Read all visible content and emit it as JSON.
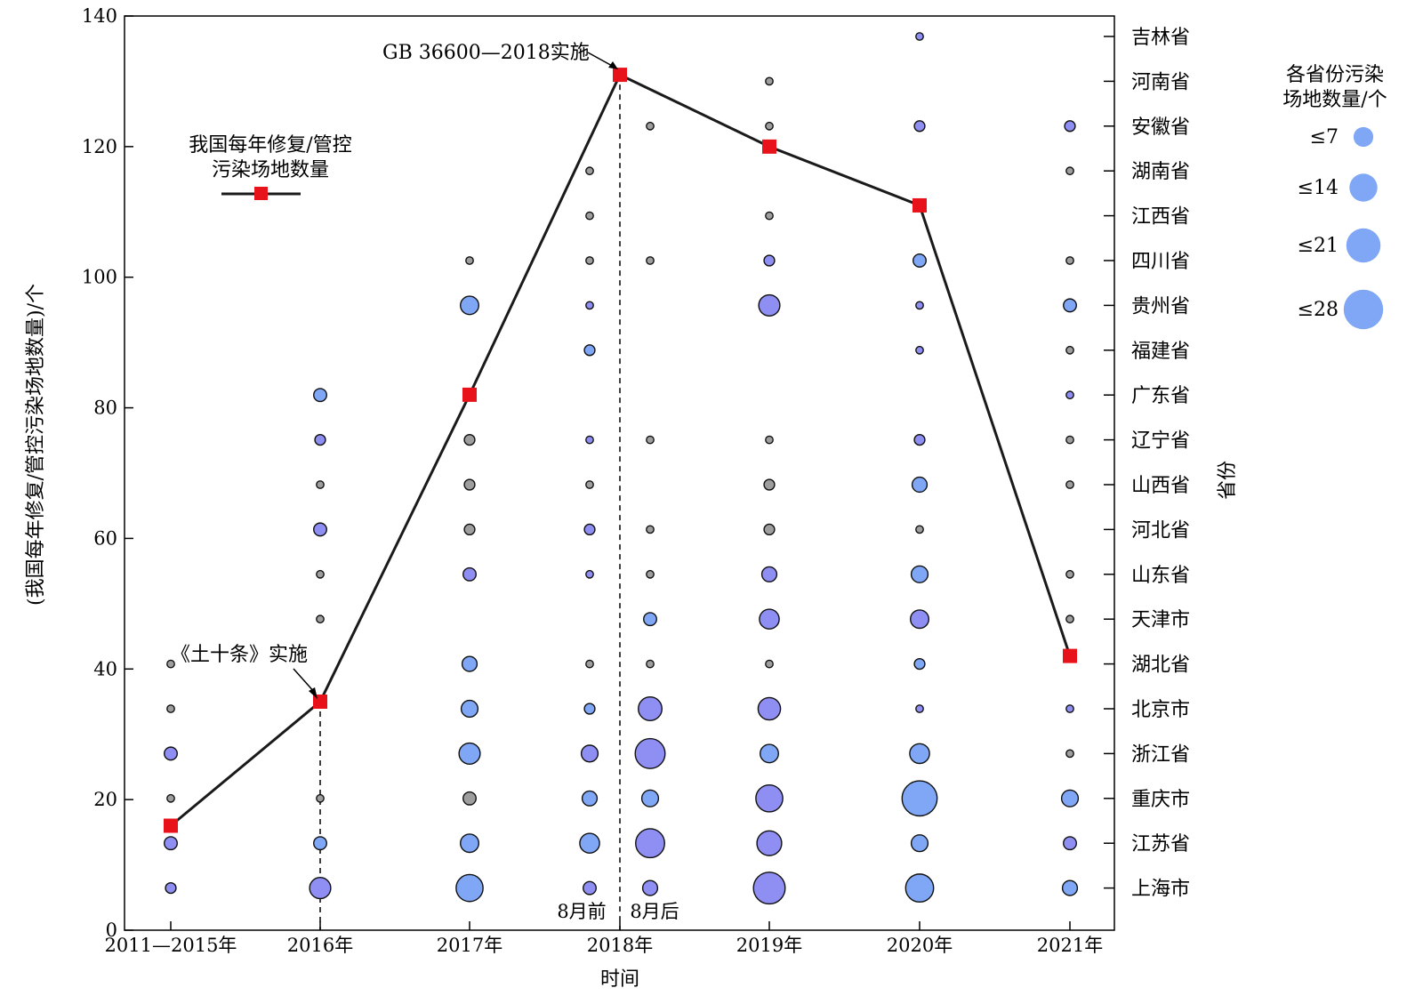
{
  "chart_data": {
    "type": "scatter",
    "x_categories": [
      "2011—2015年",
      "2016年",
      "2017年",
      "2018年",
      "2019年",
      "2020年",
      "2021年"
    ],
    "x_label": "时间",
    "y_left_label": "(我国每年修复/管控污染场地数量)/个",
    "y_left_range": [
      0,
      140
    ],
    "y_left_ticks": [
      0,
      20,
      40,
      60,
      80,
      100,
      120,
      140
    ],
    "y_right_label": "省份",
    "provinces": [
      "吉林省",
      "河南省",
      "安徽省",
      "湖南省",
      "江西省",
      "四川省",
      "贵州省",
      "福建省",
      "广东省",
      "辽宁省",
      "山西省",
      "河北省",
      "山东省",
      "天津市",
      "湖北省",
      "北京市",
      "浙江省",
      "重庆市",
      "江苏省",
      "上海市"
    ],
    "line_series": {
      "name": "我国每年修复/管控污染场地数量",
      "points": [
        {
          "x": "2011—2015年",
          "y": 16
        },
        {
          "x": "2016年",
          "y": 35
        },
        {
          "x": "2017年",
          "y": 82
        },
        {
          "x": "2018年",
          "y": 131
        },
        {
          "x": "2019年",
          "y": 120
        },
        {
          "x": "2020年",
          "y": 111
        },
        {
          "x": "2021年",
          "y": 42
        }
      ]
    },
    "legend_line_text": [
      "我国每年修复/管控",
      "污染场地数量"
    ],
    "size_legend_title": [
      "各省份污染",
      "场地数量/个"
    ],
    "size_legend": [
      {
        "label": "≤7",
        "value": 7
      },
      {
        "label": "≤14",
        "value": 14
      },
      {
        "label": "≤21",
        "value": 21
      },
      {
        "label": "≤28",
        "value": 28
      }
    ],
    "bubble_columns": [
      {
        "x": "2011—2015年",
        "items": [
          {
            "province": "湖北省",
            "value": 1,
            "color": "grey"
          },
          {
            "province": "北京市",
            "value": 1,
            "color": "grey"
          },
          {
            "province": "浙江省",
            "value": 3,
            "color": "purple"
          },
          {
            "province": "重庆市",
            "value": 1,
            "color": "grey"
          },
          {
            "province": "江苏省",
            "value": 3,
            "color": "purple"
          },
          {
            "province": "上海市",
            "value": 2,
            "color": "purple"
          }
        ]
      },
      {
        "x": "2016年",
        "items": [
          {
            "province": "广东省",
            "value": 3,
            "color": "blue"
          },
          {
            "province": "辽宁省",
            "value": 2,
            "color": "purple"
          },
          {
            "province": "山西省",
            "value": 1,
            "color": "grey"
          },
          {
            "province": "河北省",
            "value": 3,
            "color": "purple"
          },
          {
            "province": "山东省",
            "value": 1,
            "color": "grey"
          },
          {
            "province": "天津市",
            "value": 1,
            "color": "grey"
          },
          {
            "province": "重庆市",
            "value": 1,
            "color": "grey"
          },
          {
            "province": "江苏省",
            "value": 3,
            "color": "blue"
          },
          {
            "province": "上海市",
            "value": 8,
            "color": "purple"
          }
        ]
      },
      {
        "x": "2017年",
        "items": [
          {
            "province": "四川省",
            "value": 1,
            "color": "grey"
          },
          {
            "province": "贵州省",
            "value": 6,
            "color": "blue"
          },
          {
            "province": "辽宁省",
            "value": 2,
            "color": "grey"
          },
          {
            "province": "山西省",
            "value": 2,
            "color": "grey"
          },
          {
            "province": "河北省",
            "value": 2,
            "color": "grey"
          },
          {
            "province": "山东省",
            "value": 3,
            "color": "purple"
          },
          {
            "province": "湖北省",
            "value": 4,
            "color": "blue"
          },
          {
            "province": "北京市",
            "value": 5,
            "color": "blue"
          },
          {
            "province": "浙江省",
            "value": 8,
            "color": "blue"
          },
          {
            "province": "重庆市",
            "value": 3,
            "color": "grey"
          },
          {
            "province": "江苏省",
            "value": 6,
            "color": "blue"
          },
          {
            "province": "上海市",
            "value": 13,
            "color": "blue"
          }
        ]
      },
      {
        "x": "2018年（8月前）",
        "items": [
          {
            "province": "湖南省",
            "value": 1,
            "color": "grey"
          },
          {
            "province": "江西省",
            "value": 1,
            "color": "grey"
          },
          {
            "province": "四川省",
            "value": 1,
            "color": "grey"
          },
          {
            "province": "贵州省",
            "value": 1,
            "color": "purple"
          },
          {
            "province": "福建省",
            "value": 2,
            "color": "blue"
          },
          {
            "province": "辽宁省",
            "value": 1,
            "color": "purple"
          },
          {
            "province": "山西省",
            "value": 1,
            "color": "grey"
          },
          {
            "province": "河北省",
            "value": 2,
            "color": "purple"
          },
          {
            "province": "山东省",
            "value": 1,
            "color": "purple"
          },
          {
            "province": "湖北省",
            "value": 1,
            "color": "grey"
          },
          {
            "province": "北京市",
            "value": 2,
            "color": "blue"
          },
          {
            "province": "浙江省",
            "value": 5,
            "color": "purple"
          },
          {
            "province": "重庆市",
            "value": 4,
            "color": "blue"
          },
          {
            "province": "江苏省",
            "value": 7,
            "color": "blue"
          },
          {
            "province": "上海市",
            "value": 3,
            "color": "purple"
          }
        ]
      },
      {
        "x": "2018年（8月后）",
        "items": [
          {
            "province": "安徽省",
            "value": 1,
            "color": "grey"
          },
          {
            "province": "四川省",
            "value": 1,
            "color": "grey"
          },
          {
            "province": "辽宁省",
            "value": 1,
            "color": "grey"
          },
          {
            "province": "河北省",
            "value": 1,
            "color": "grey"
          },
          {
            "province": "山东省",
            "value": 1,
            "color": "grey"
          },
          {
            "province": "天津市",
            "value": 3,
            "color": "blue"
          },
          {
            "province": "湖北省",
            "value": 1,
            "color": "grey"
          },
          {
            "province": "北京市",
            "value": 10,
            "color": "purple"
          },
          {
            "province": "浙江省",
            "value": 16,
            "color": "purple"
          },
          {
            "province": "重庆市",
            "value": 5,
            "color": "blue"
          },
          {
            "province": "江苏省",
            "value": 15,
            "color": "purple"
          },
          {
            "province": "上海市",
            "value": 4,
            "color": "purple"
          }
        ]
      },
      {
        "x": "2019年",
        "items": [
          {
            "province": "河南省",
            "value": 1,
            "color": "grey"
          },
          {
            "province": "安徽省",
            "value": 1,
            "color": "grey"
          },
          {
            "province": "江西省",
            "value": 1,
            "color": "grey"
          },
          {
            "province": "四川省",
            "value": 2,
            "color": "purple"
          },
          {
            "province": "贵州省",
            "value": 8,
            "color": "purple"
          },
          {
            "province": "辽宁省",
            "value": 1,
            "color": "grey"
          },
          {
            "province": "山西省",
            "value": 2,
            "color": "grey"
          },
          {
            "province": "河北省",
            "value": 2,
            "color": "grey"
          },
          {
            "province": "山东省",
            "value": 4,
            "color": "purple"
          },
          {
            "province": "天津市",
            "value": 7,
            "color": "purple"
          },
          {
            "province": "湖北省",
            "value": 1,
            "color": "grey"
          },
          {
            "province": "北京市",
            "value": 9,
            "color": "purple"
          },
          {
            "province": "浙江省",
            "value": 6,
            "color": "blue"
          },
          {
            "province": "重庆市",
            "value": 13,
            "color": "purple"
          },
          {
            "province": "江苏省",
            "value": 11,
            "color": "purple"
          },
          {
            "province": "上海市",
            "value": 18,
            "color": "purple"
          }
        ]
      },
      {
        "x": "2020年",
        "items": [
          {
            "province": "吉林省",
            "value": 1,
            "color": "purple"
          },
          {
            "province": "安徽省",
            "value": 2,
            "color": "purple"
          },
          {
            "province": "四川省",
            "value": 3,
            "color": "blue"
          },
          {
            "province": "贵州省",
            "value": 1,
            "color": "purple"
          },
          {
            "province": "福建省",
            "value": 1,
            "color": "purple"
          },
          {
            "province": "辽宁省",
            "value": 2,
            "color": "purple"
          },
          {
            "province": "山西省",
            "value": 4,
            "color": "blue"
          },
          {
            "province": "河北省",
            "value": 1,
            "color": "grey"
          },
          {
            "province": "山东省",
            "value": 5,
            "color": "blue"
          },
          {
            "province": "天津市",
            "value": 6,
            "color": "purple"
          },
          {
            "province": "湖北省",
            "value": 2,
            "color": "blue"
          },
          {
            "province": "北京市",
            "value": 1,
            "color": "purple"
          },
          {
            "province": "浙江省",
            "value": 7,
            "color": "blue"
          },
          {
            "province": "重庆市",
            "value": 22,
            "color": "blue"
          },
          {
            "province": "江苏省",
            "value": 5,
            "color": "blue"
          },
          {
            "province": "上海市",
            "value": 14,
            "color": "blue"
          }
        ]
      },
      {
        "x": "2021年",
        "items": [
          {
            "province": "安徽省",
            "value": 2,
            "color": "purple"
          },
          {
            "province": "湖南省",
            "value": 1,
            "color": "grey"
          },
          {
            "province": "四川省",
            "value": 1,
            "color": "grey"
          },
          {
            "province": "贵州省",
            "value": 3,
            "color": "blue"
          },
          {
            "province": "福建省",
            "value": 1,
            "color": "grey"
          },
          {
            "province": "广东省",
            "value": 1,
            "color": "purple"
          },
          {
            "province": "辽宁省",
            "value": 1,
            "color": "grey"
          },
          {
            "province": "山西省",
            "value": 1,
            "color": "grey"
          },
          {
            "province": "山东省",
            "value": 1,
            "color": "grey"
          },
          {
            "province": "天津市",
            "value": 1,
            "color": "grey"
          },
          {
            "province": "北京市",
            "value": 1,
            "color": "purple"
          },
          {
            "province": "浙江省",
            "value": 1,
            "color": "grey"
          },
          {
            "province": "重庆市",
            "value": 5,
            "color": "blue"
          },
          {
            "province": "江苏省",
            "value": 3,
            "color": "purple"
          },
          {
            "province": "上海市",
            "value": 4,
            "color": "blue"
          }
        ]
      }
    ],
    "annotations": [
      {
        "text": "《土十条》实施",
        "x": "2016年"
      },
      {
        "text": "GB 36600—2018实施",
        "x": "2018年"
      }
    ],
    "split_labels": [
      "8月前",
      "8月后"
    ],
    "colors": {
      "line": "#1a1a1a",
      "marker": "#e8121b",
      "blue": "#7fa7f5",
      "purple": "#8f8ef3",
      "grey": "#9e9e9e",
      "legend_bubble": "#7fa7f5"
    }
  }
}
